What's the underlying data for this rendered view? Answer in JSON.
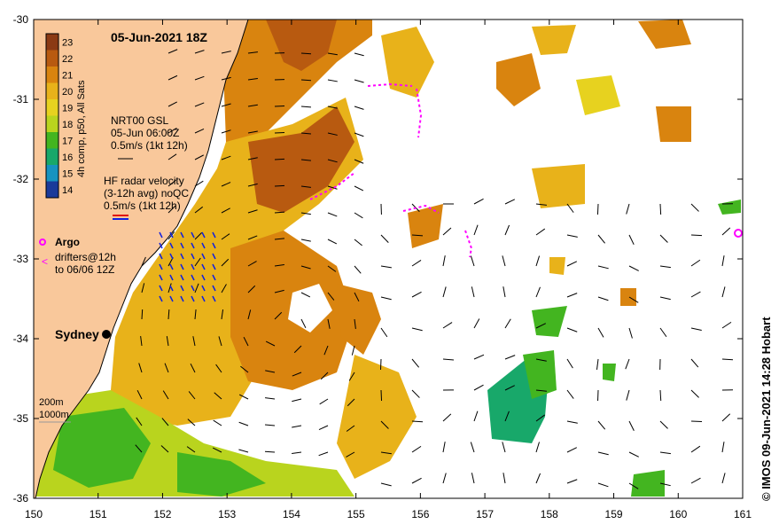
{
  "title": "05-Jun-2021 18Z",
  "credit": "© IMOS 09-Jun-2021 14:28 Hobart",
  "colorbar": {
    "caption": "4h comp, p50, All Sats",
    "values": [
      23,
      22,
      21,
      20,
      19,
      18,
      17,
      16,
      15,
      14
    ],
    "colors": [
      "#8b3a14",
      "#b85a10",
      "#d9840f",
      "#e8b21a",
      "#e7d21f",
      "#b9d41e",
      "#43b520",
      "#18a86a",
      "#1693c0",
      "#1a3a9a"
    ]
  },
  "legend": {
    "gsl": [
      "NRT00 GSL",
      "05-Jun 06:00Z",
      "0.5m/s (1kt 12h)"
    ],
    "hf": [
      "HF radar velocity",
      "(3-12h avg) noQC",
      "0.5m/s (1kt 12h)"
    ],
    "argo": "Argo",
    "drifters": [
      "drifters@12h",
      "to 06/06 12Z"
    ],
    "depth": [
      "200m",
      "1000m"
    ]
  },
  "place": "Sydney",
  "axes": {
    "x_ticks": [
      "150",
      "151",
      "152",
      "153",
      "154",
      "155",
      "156",
      "157",
      "158",
      "159",
      "160",
      "161"
    ],
    "y_ticks": [
      "-30",
      "-31",
      "-32",
      "-33",
      "-34",
      "-35",
      "-36"
    ],
    "xlim": [
      150,
      161
    ],
    "ylim": [
      -36,
      -30
    ]
  },
  "colors": {
    "land": "#f9c89b",
    "warm_core": "#d9840f",
    "core_dark": "#b85a10",
    "coastal_green": "#43b520",
    "argo": "#ff00ff",
    "hf_arrow": "#1020e0"
  },
  "markers": {
    "sydney": {
      "lon": 151.2,
      "lat": -33.87
    },
    "argo": [
      {
        "lon": 160.97,
        "lat": -32.58
      }
    ]
  }
}
